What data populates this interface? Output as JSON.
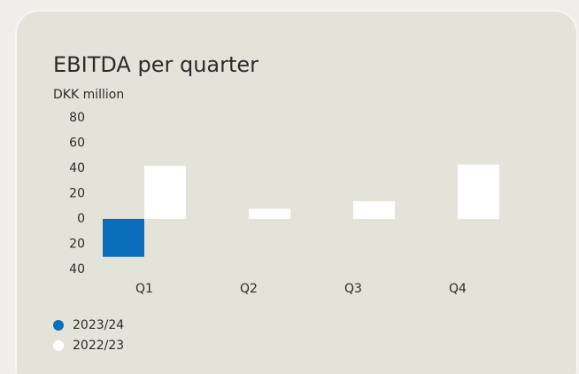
{
  "chart_data": {
    "type": "bar",
    "title": "EBITDA per quarter",
    "y_label": "DKK million",
    "categories": [
      "Q1",
      "Q2",
      "Q3",
      "Q4"
    ],
    "series": [
      {
        "name": "2023/24",
        "color": "#0a6ebd",
        "values": [
          -30,
          null,
          null,
          null
        ]
      },
      {
        "name": "2022/23",
        "color": "#ffffff",
        "values": [
          42,
          8,
          14,
          43
        ]
      }
    ],
    "ylim": [
      -40,
      80
    ],
    "yticks": [
      80,
      60,
      40,
      20,
      0,
      {
        "value": -20,
        "label": "20"
      },
      {
        "value": -40,
        "label": "40"
      }
    ],
    "grid": false,
    "legend": "bottom-left"
  }
}
